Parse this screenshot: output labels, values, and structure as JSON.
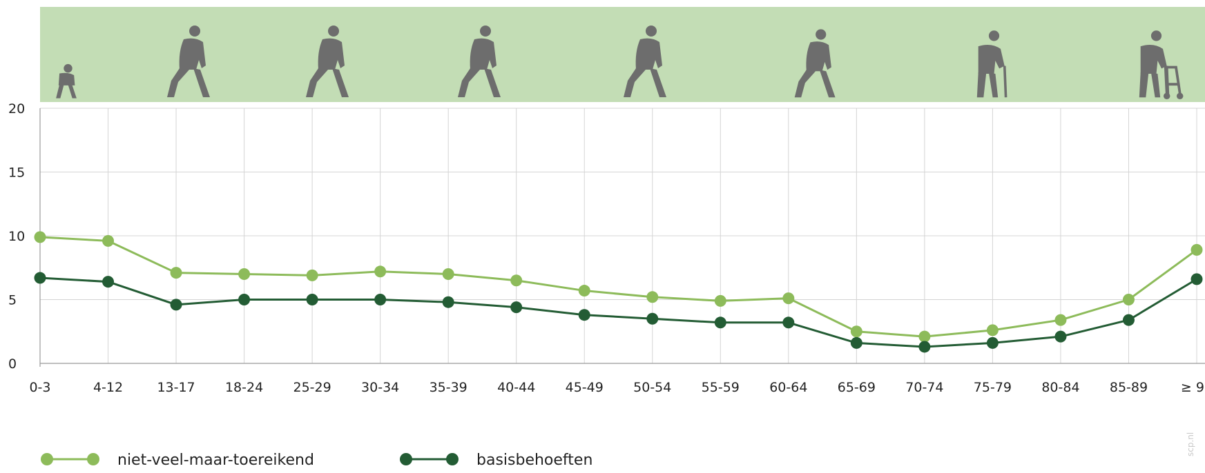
{
  "chart_data": {
    "type": "line",
    "categories": [
      "0-3",
      "4-12",
      "13-17",
      "18-24",
      "25-29",
      "30-34",
      "35-39",
      "40-44",
      "45-49",
      "50-54",
      "55-59",
      "60-64",
      "65-69",
      "70-74",
      "75-79",
      "80-84",
      "85-89",
      "≥ 90"
    ],
    "ylim": [
      0,
      20
    ],
    "yticks": [
      0,
      5,
      10,
      15,
      20
    ],
    "grid": true,
    "legend_position": "bottom-left",
    "series": [
      {
        "name": "niet-veel-maar-toereikend",
        "color": "#8dbb5a",
        "values": [
          9.9,
          9.6,
          7.1,
          7.0,
          6.9,
          7.2,
          7.0,
          6.5,
          5.7,
          5.2,
          4.9,
          5.1,
          2.5,
          2.1,
          2.6,
          3.4,
          5.0,
          8.9
        ]
      },
      {
        "name": "basisbehoeften",
        "color": "#235c34",
        "values": [
          6.7,
          6.4,
          4.6,
          5.0,
          5.0,
          5.0,
          4.8,
          4.4,
          3.8,
          3.5,
          3.2,
          3.2,
          1.6,
          1.3,
          1.6,
          2.1,
          3.4,
          6.6
        ]
      }
    ],
    "header_band_color": "#c3ddb5",
    "icon_color": "#6d6d6d",
    "header_icons": [
      "toddler-icon",
      "child-walking-icon",
      "teen-walking-icon",
      "adult-walking-icon",
      "middle-aged-walking-icon",
      "senior-walking-icon",
      "elderly-cane-icon",
      "elderly-walker-icon"
    ]
  },
  "watermark": "scp.nl"
}
